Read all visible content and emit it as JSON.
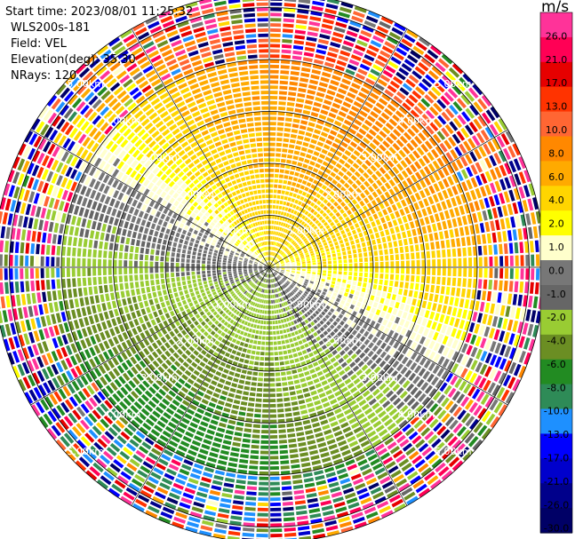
{
  "info": {
    "start_time": "Start time: 2023/08/01 11:25:32",
    "instrument": "WLS200s-181",
    "field": "Field: VEL",
    "elevation": "Elevation(deg): 35.30",
    "nrays": "NRays: 120"
  },
  "chart_data": {
    "type": "heatmap",
    "projection": "polar-ppi",
    "field": "VEL",
    "units": "m/s",
    "n_rays": 120,
    "elevation_deg": 35.3,
    "range_rings_km": [
      1,
      2,
      3,
      4,
      5
    ],
    "range_ring_labels": [
      "1.00km",
      "2.00km",
      "3.00km",
      "4.00km",
      "5.00km"
    ],
    "max_range_km": 5.3,
    "azimuth_lines_deg": [
      0,
      30,
      60,
      90,
      120,
      150,
      180,
      210,
      240,
      270,
      300,
      330
    ],
    "colorbar": {
      "title": "m/s",
      "ticks": [
        "26.0",
        "21.0",
        "17.0",
        "13.0",
        "10.0",
        "8.0",
        "6.0",
        "4.0",
        "2.0",
        "1.0",
        "0.0",
        "-1.0",
        "-2.0",
        "-4.0",
        "-6.0",
        "-8.0",
        "-10.0",
        "-13.0",
        "-17.0",
        "-21.0",
        "-26.0",
        "-30.0"
      ],
      "colors": [
        "#ff3399",
        "#ff0055",
        "#e60000",
        "#ff3300",
        "#ff6633",
        "#ff8800",
        "#ffaa00",
        "#ffd500",
        "#ffff00",
        "#ffffcc",
        "#777777",
        "#666666",
        "#99cc33",
        "#6b8e23",
        "#228b22",
        "#2e8b57",
        "#1e90ff",
        "#0000ff",
        "#0000cc",
        "#00008b",
        "#000066"
      ]
    },
    "velocity_pattern": {
      "mean_speed_ms": 4.5,
      "flow_toward_azimuth_deg": 20,
      "clean_range_km": 4.0
    }
  }
}
